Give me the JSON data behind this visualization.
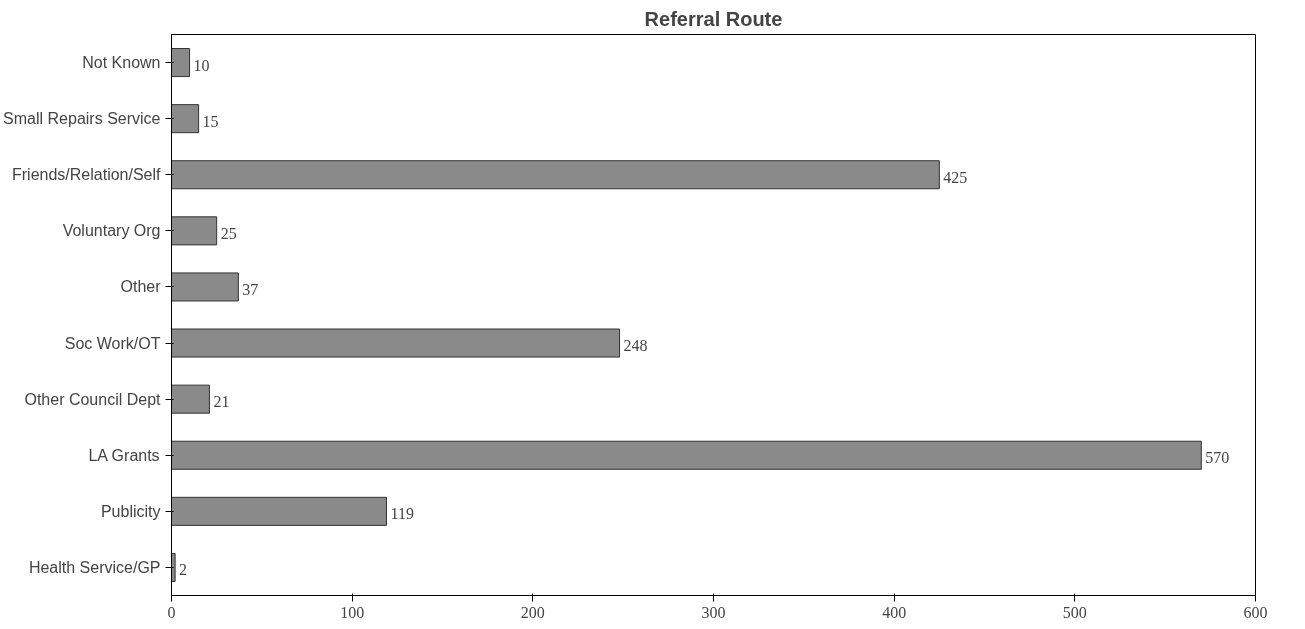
{
  "chart_data": {
    "type": "bar",
    "orientation": "horizontal",
    "title": "Referral Route",
    "categories": [
      "Not Known",
      "Small Repairs Service",
      "Friends/Relation/Self",
      "Voluntary Org",
      "Other",
      "Soc Work/OT",
      "Other Council Dept",
      "LA Grants",
      "Publicity",
      "Health Service/GP"
    ],
    "values": [
      10,
      15,
      425,
      25,
      37,
      248,
      21,
      570,
      119,
      2
    ],
    "color": "#8a8a8a",
    "data_labels": true,
    "grid": false,
    "xlim": [
      0,
      600
    ],
    "xticks": [
      0,
      100,
      200,
      300,
      400,
      500,
      600
    ]
  }
}
